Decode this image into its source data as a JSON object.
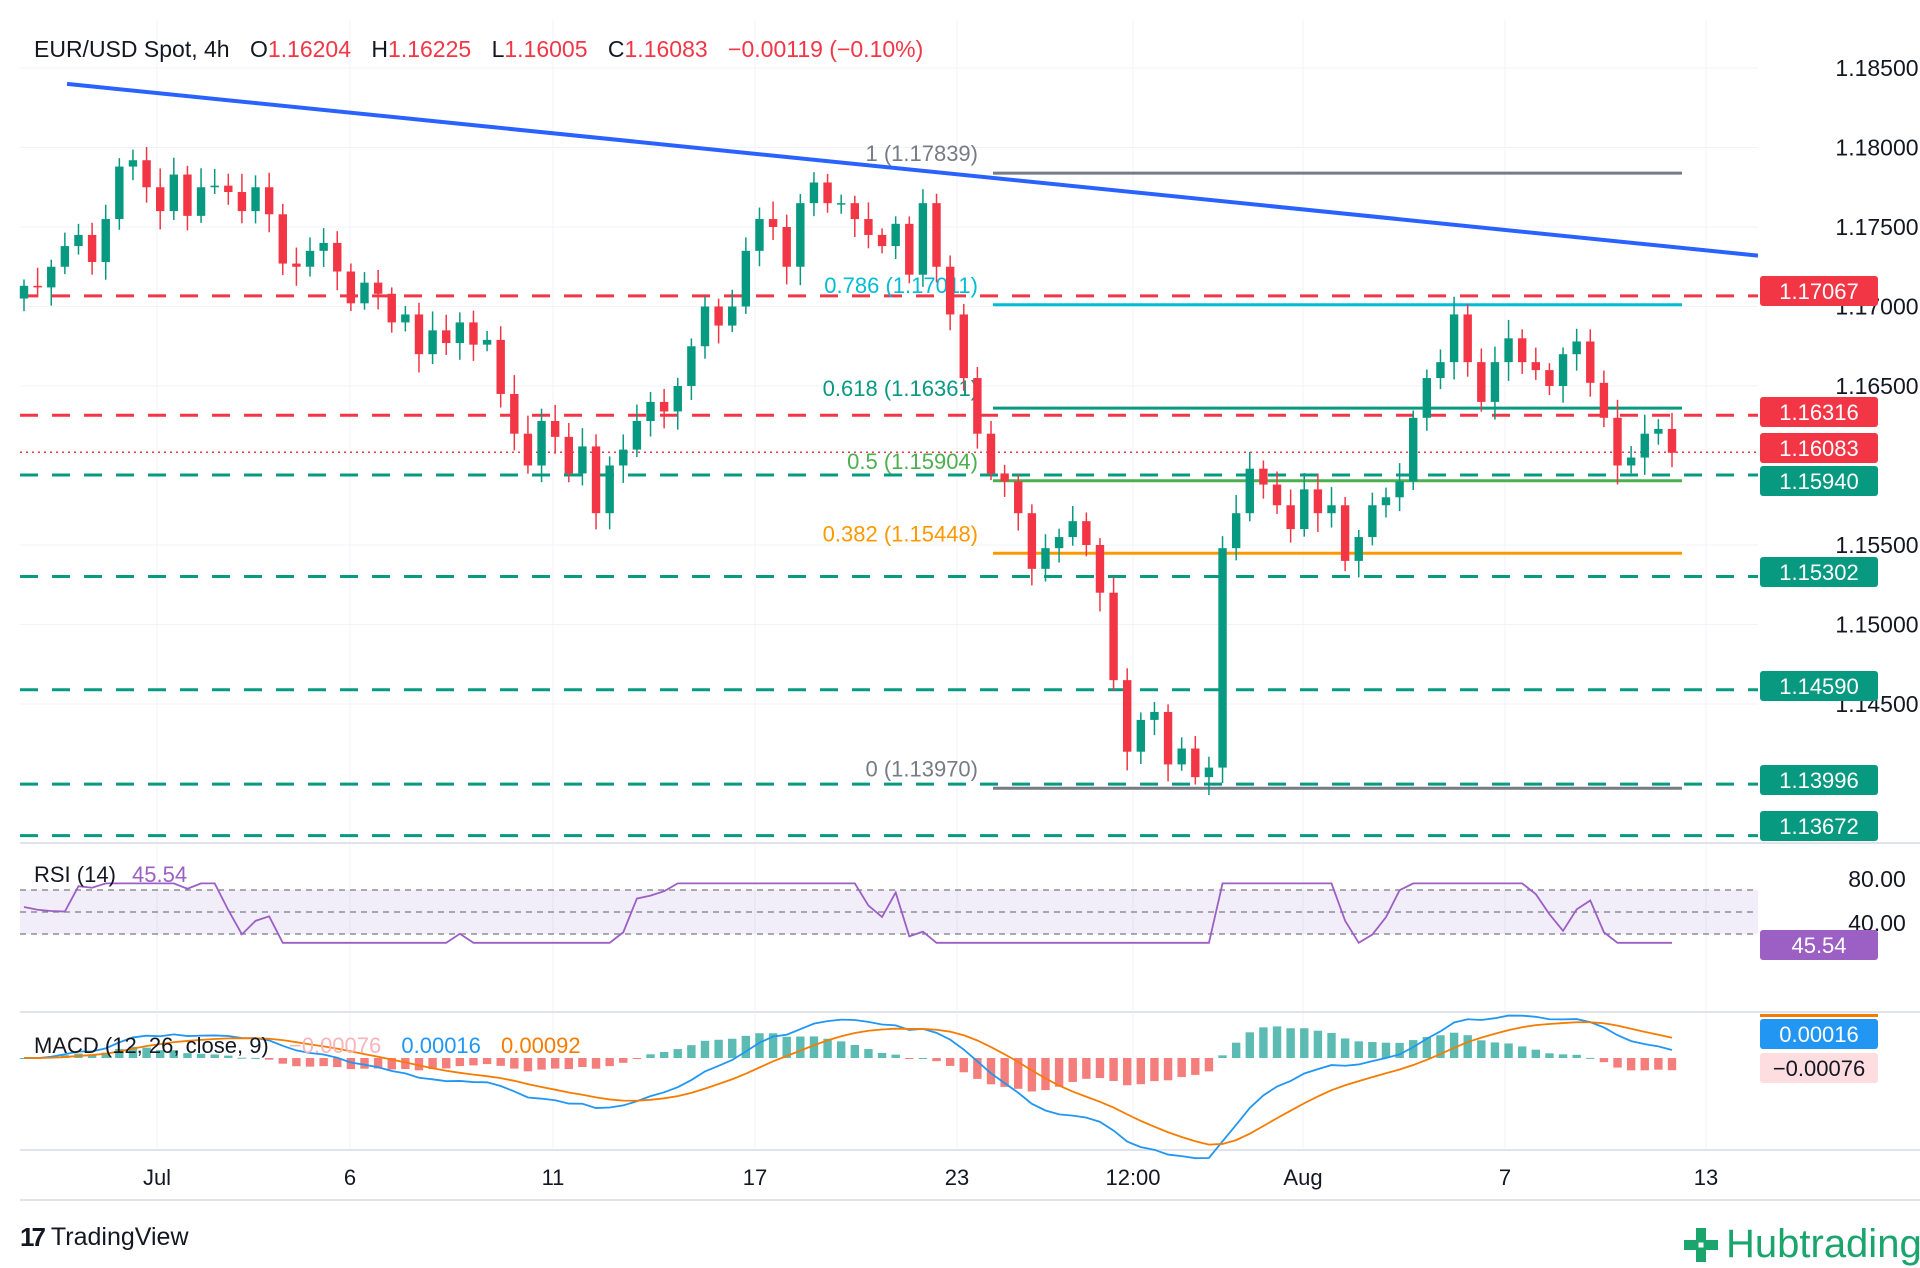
{
  "header": {
    "symbol": "EUR/USD Spot, 4h",
    "open_label": "O",
    "open": "1.16204",
    "high_label": "H",
    "high": "1.16225",
    "low_label": "L",
    "low": "1.16005",
    "close_label": "C",
    "close": "1.16083",
    "change": "−0.00119 (−0.10%)"
  },
  "chart_data": {
    "type": "candlestick",
    "price_axis": {
      "range": [
        1.1325,
        1.1875
      ],
      "ticks": [
        "1.18500",
        "1.18000",
        "1.17500",
        "1.17000",
        "1.16500",
        "1.15500",
        "1.15000",
        "1.14500"
      ]
    },
    "time_axis": {
      "ticks": [
        "Jul",
        "6",
        "11",
        "17",
        "23",
        "12:00",
        "Aug",
        "7",
        "13"
      ]
    },
    "close_path": [
      1.1713,
      1.1712,
      1.1725,
      1.1738,
      1.1745,
      1.1728,
      1.1755,
      1.1788,
      1.1792,
      1.1775,
      1.176,
      1.1783,
      1.1757,
      1.1775,
      1.1776,
      1.1772,
      1.176,
      1.1775,
      1.1758,
      1.1727,
      1.1725,
      1.1735,
      1.174,
      1.1722,
      1.1702,
      1.1715,
      1.1708,
      1.169,
      1.1695,
      1.167,
      1.1685,
      1.1677,
      1.169,
      1.1676,
      1.1679,
      1.1645,
      1.162,
      1.16,
      1.1628,
      1.1618,
      1.1595,
      1.1612,
      1.157,
      1.16,
      1.161,
      1.1628,
      1.164,
      1.1634,
      1.165,
      1.1675,
      1.17,
      1.1688,
      1.17,
      1.1735,
      1.1755,
      1.175,
      1.1725,
      1.1765,
      1.1778,
      1.1765,
      1.1765,
      1.1755,
      1.1745,
      1.1738,
      1.1752,
      1.172,
      1.1765,
      1.1725,
      1.1695,
      1.1655,
      1.162,
      1.1595,
      1.159,
      1.157,
      1.1535,
      1.1548,
      1.1555,
      1.1565,
      1.155,
      1.152,
      1.1465,
      1.142,
      1.144,
      1.1445,
      1.1412,
      1.1422,
      1.1404,
      1.141,
      1.1548,
      1.157,
      1.1598,
      1.1588,
      1.1575,
      1.156,
      1.1585,
      1.157,
      1.1575,
      1.154,
      1.1555,
      1.1575,
      1.158,
      1.159,
      1.163,
      1.1655,
      1.1665,
      1.1695,
      1.1665,
      1.164,
      1.1665,
      1.168,
      1.1665,
      1.166,
      1.165,
      1.167,
      1.1678,
      1.1652,
      1.163,
      1.16,
      1.1605,
      1.162,
      1.1623,
      1.1608
    ],
    "current_price": 1.16083,
    "trendline": {
      "from": 1.184,
      "to": 1.1732
    },
    "fibonacci": [
      {
        "label": "1 (1.17839)",
        "value": 1.17839,
        "color": "#787b86"
      },
      {
        "label": "0.786 (1.17011)",
        "value": 1.17011,
        "color": "#00bcd4"
      },
      {
        "label": "0.618 (1.16361)",
        "value": 1.16361,
        "color": "#089981"
      },
      {
        "label": "0.5 (1.15904)",
        "value": 1.15904,
        "color": "#4caf50"
      },
      {
        "label": "0.382 (1.15448)",
        "value": 1.15448,
        "color": "#ff9800"
      },
      {
        "label": "0 (1.13970)",
        "value": 1.1397,
        "color": "#787b86"
      }
    ],
    "levels": [
      {
        "label": "1.17067",
        "value": 1.17067,
        "color": "#f23645"
      },
      {
        "label": "1.16316",
        "value": 1.16316,
        "color": "#f23645"
      },
      {
        "label": "1.16083",
        "value": 1.16083,
        "color": "#f23645"
      },
      {
        "label": "1.15940",
        "value": 1.1594,
        "color": "#089981"
      },
      {
        "label": "1.15302",
        "value": 1.15302,
        "color": "#089981"
      },
      {
        "label": "1.14590",
        "value": 1.1459,
        "color": "#089981"
      },
      {
        "label": "1.13996",
        "value": 1.13996,
        "color": "#089981"
      },
      {
        "label": "1.13672",
        "value": 1.13672,
        "color": "#089981"
      }
    ],
    "rsi": {
      "title": "RSI (14)",
      "value": "45.54",
      "ticks": [
        "80.00",
        "40.00"
      ],
      "range": [
        20,
        90
      ],
      "bands": [
        70,
        50,
        30
      ]
    },
    "macd": {
      "title": "MACD (12, 26, close, 9)",
      "histogram": "−0.00076",
      "macd": "0.00016",
      "signal": "0.00092",
      "histogram_label": "−0.00076",
      "macd_label": "0.00016"
    }
  },
  "branding": {
    "tradingview": "TradingView",
    "hub": "Hubtrading"
  },
  "colors": {
    "up": "#089981",
    "down": "#f23645",
    "trend": "#2962ff",
    "rsi": "#9c5fc4",
    "macd": "#2196f3",
    "signal": "#f57c00"
  }
}
